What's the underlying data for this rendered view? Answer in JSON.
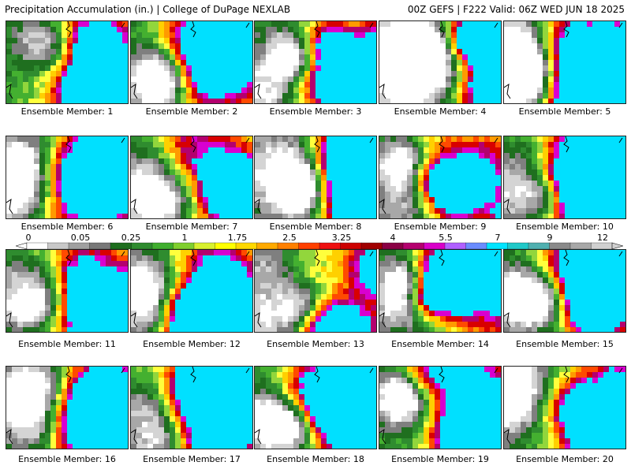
{
  "header": {
    "title": "Precipitation Accumulation (in.) | College of DuPage NEXLAB",
    "run_info": "00Z GEFS | F222 Valid: 06Z WED JUN 18 2025"
  },
  "members": [
    {
      "label": "Ensemble Member: 1"
    },
    {
      "label": "Ensemble Member: 2"
    },
    {
      "label": "Ensemble Member: 3"
    },
    {
      "label": "Ensemble Member: 4"
    },
    {
      "label": "Ensemble Member: 5"
    },
    {
      "label": "Ensemble Member: 6"
    },
    {
      "label": "Ensemble Member: 7"
    },
    {
      "label": "Ensemble Member: 8"
    },
    {
      "label": "Ensemble Member: 9"
    },
    {
      "label": "Ensemble Member: 10"
    },
    {
      "label": "Ensemble Member: 11"
    },
    {
      "label": "Ensemble Member: 12"
    },
    {
      "label": "Ensemble Member: 13"
    },
    {
      "label": "Ensemble Member: 14"
    },
    {
      "label": "Ensemble Member: 15"
    },
    {
      "label": "Ensemble Member: 16"
    },
    {
      "label": "Ensemble Member: 17"
    },
    {
      "label": "Ensemble Member: 18"
    },
    {
      "label": "Ensemble Member: 19"
    },
    {
      "label": "Ensemble Member: 20"
    }
  ],
  "legend": {
    "tick_labels": [
      "0",
      "0.05",
      "0.25",
      "1",
      "1.75",
      "2.5",
      "3.25",
      "4",
      "5.5",
      "7",
      "9",
      "12"
    ],
    "colors": [
      "#ffffff",
      "#c8c8c8",
      "#a0a0a0",
      "#787878",
      "#1e6e1e",
      "#2e8b2e",
      "#3fae2e",
      "#7fcf2e",
      "#d8f02e",
      "#ffff00",
      "#ffd800",
      "#ffaa00",
      "#ff8000",
      "#ff4000",
      "#ee1010",
      "#cc0000",
      "#a00000",
      "#8a0044",
      "#b4006e",
      "#d800c8",
      "#b060ff",
      "#6a8cff",
      "#00e4ff",
      "#20c8c8",
      "#50b0b0",
      "#8a8a8a",
      "#a8a8a8",
      "#d0d0d0"
    ]
  }
}
